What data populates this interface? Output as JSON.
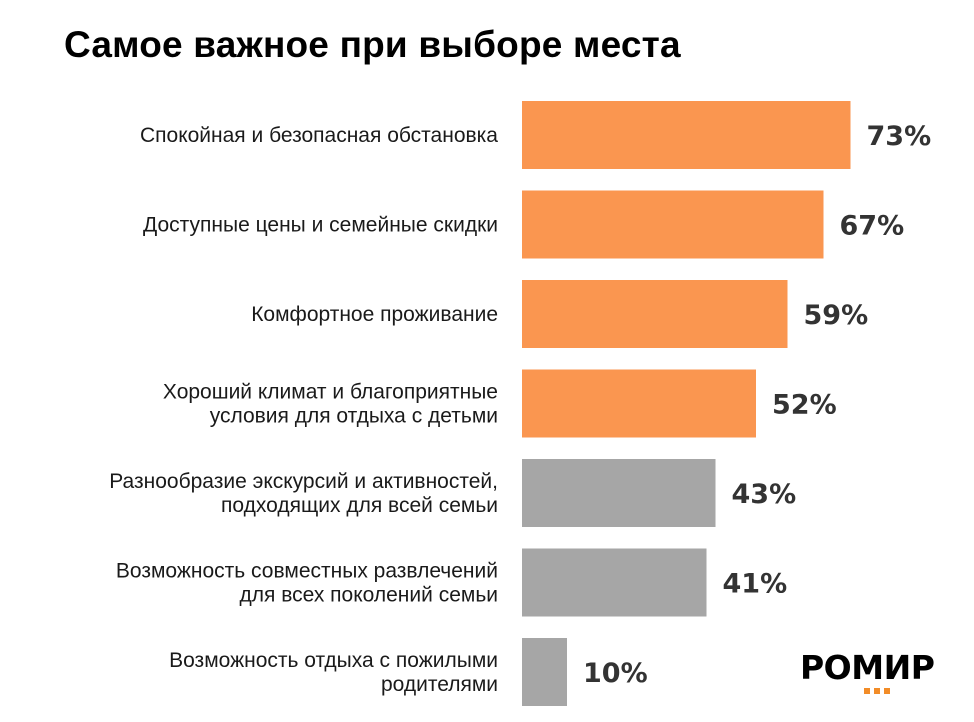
{
  "colors": {
    "highlight": "#FA9650",
    "muted": "#A6A6A6",
    "title": "#000000",
    "value_text": "#333333",
    "logo_dots": "#F28C28"
  },
  "chart_data": {
    "type": "bar",
    "orientation": "horizontal",
    "title": "Самое важное при выборе места",
    "unit": "%",
    "xlim": [
      0,
      100
    ],
    "categories": [
      [
        "Спокойная и безопасная обстановка"
      ],
      [
        "Доступные цены и семейные скидки"
      ],
      [
        "Комфортное проживание"
      ],
      [
        "Хороший климат и благоприятные",
        "условия для отдыха с детьми"
      ],
      [
        "Разнообразие экскурсий и активностей,",
        "подходящих для всей семьи"
      ],
      [
        "Возможность совместных развлечений",
        "для всех поколений семьи"
      ],
      [
        "Возможность отдыха с пожилыми",
        "родителями"
      ]
    ],
    "values": [
      73,
      67,
      59,
      52,
      43,
      41,
      10
    ],
    "value_labels": [
      "73%",
      "67%",
      "59%",
      "52%",
      "43%",
      "41%",
      "10%"
    ],
    "bar_colors": [
      "highlight",
      "highlight",
      "highlight",
      "highlight",
      "muted",
      "muted",
      "muted"
    ],
    "xlabel": "",
    "ylabel": "",
    "grid": false,
    "legend": "none"
  },
  "logo": {
    "text": "РОМИР"
  }
}
